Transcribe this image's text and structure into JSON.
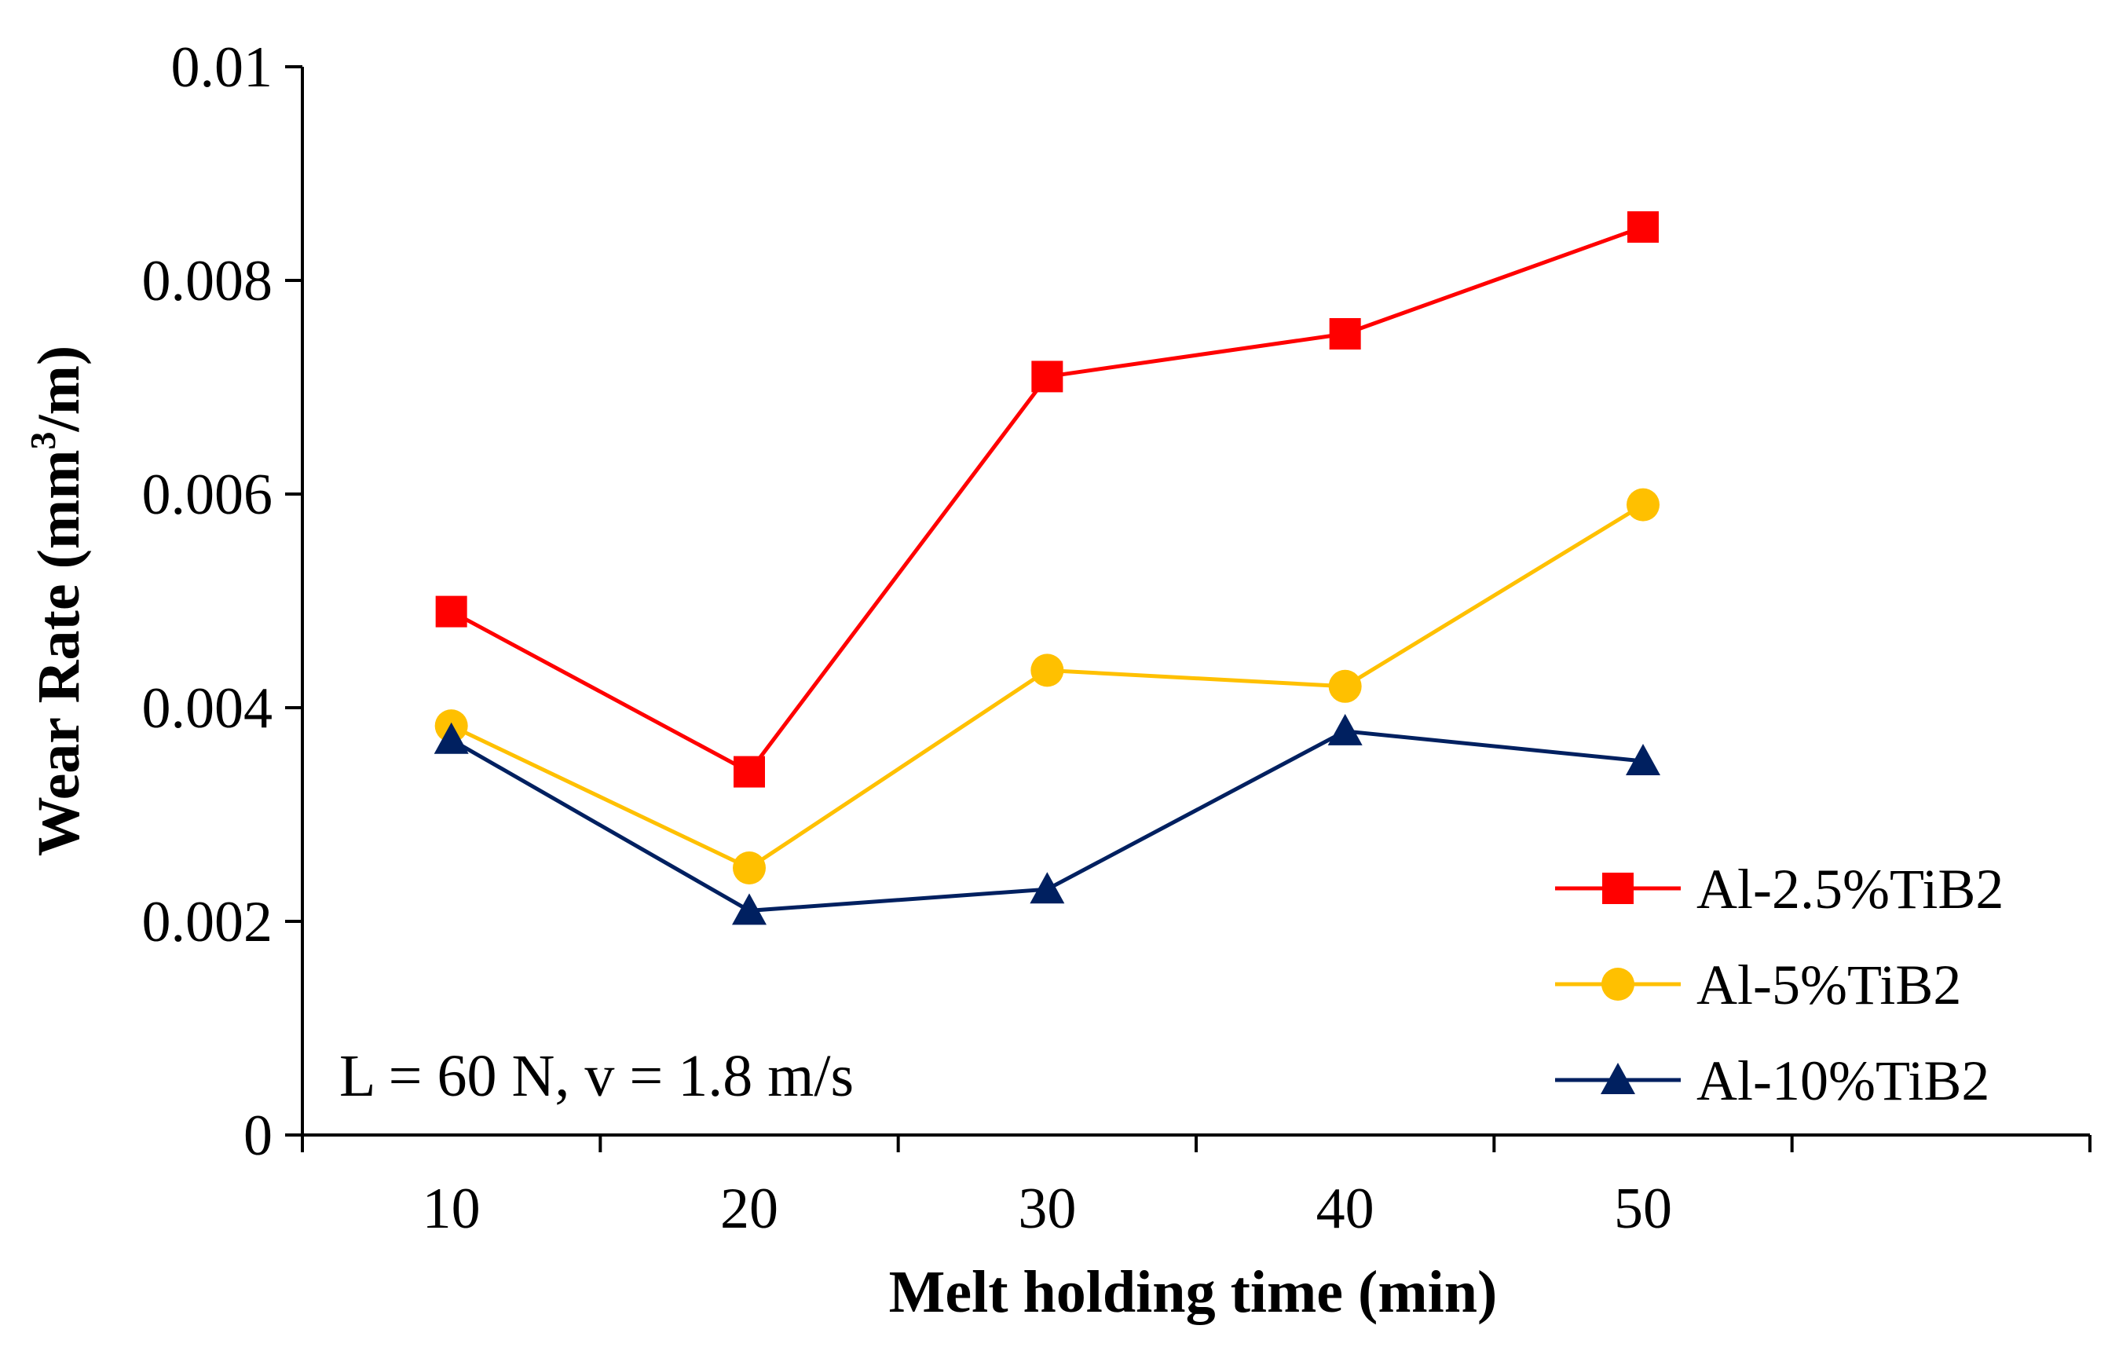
{
  "chart_data": {
    "type": "line",
    "title": "",
    "xlabel": "Melt holding time (min)",
    "ylabel_main": "Wear Rate (mm",
    "ylabel_sup": "3",
    "ylabel_end": "/m)",
    "ylabel": "Wear Rate (mm³/m)",
    "categories": [
      "10",
      "20",
      "30",
      "40",
      "50"
    ],
    "ylim": [
      0,
      0.01
    ],
    "yticks": [
      "0",
      "0.002",
      "0.004",
      "0.006",
      "0.008",
      "0.01"
    ],
    "grid": false,
    "legend_position": "bottom-right",
    "annotation": "L = 60 N, v = 1.8 m/s",
    "series": [
      {
        "name": "Al-2.5%TiB2",
        "color": "#ff0000",
        "marker": "square",
        "values": [
          0.0049,
          0.0034,
          0.0071,
          0.0075,
          0.0085
        ]
      },
      {
        "name": "Al-5%TiB2",
        "color": "#ffc000",
        "marker": "circle",
        "values": [
          0.00383,
          0.0025,
          0.00435,
          0.0042,
          0.0059
        ]
      },
      {
        "name": "Al-10%TiB2",
        "color": "#002060",
        "marker": "triangle",
        "values": [
          0.0037,
          0.0021,
          0.0023,
          0.00378,
          0.0035
        ]
      }
    ]
  }
}
